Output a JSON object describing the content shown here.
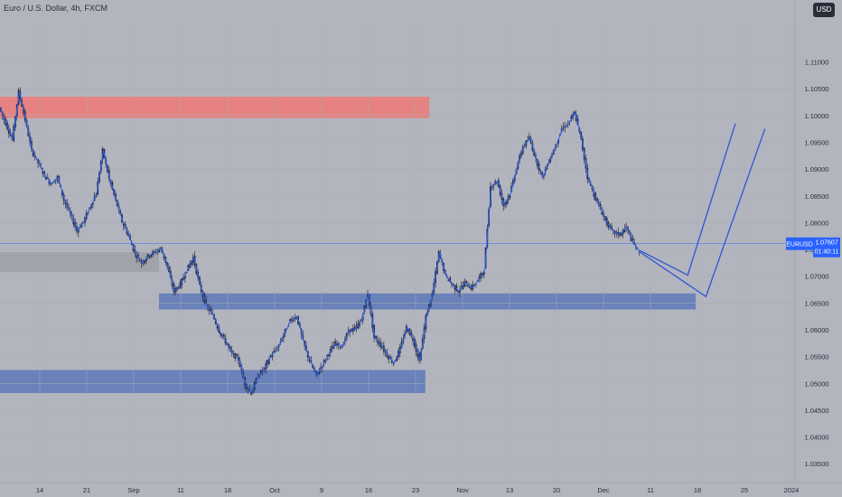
{
  "chart_title": "Euro / U.S. Dollar, 4h, FXCM",
  "currency": "USD",
  "price_tag": {
    "symbol": "EURUSD",
    "price": "1.07607",
    "countdown": "01:40:11",
    "value": 1.07607
  },
  "colors": {
    "background": "#b2b5be",
    "candle": "#2a2e39",
    "price_line": "#2962ff",
    "projection": "#3056d3",
    "supply_zone": "#ef7a78",
    "demand_zone": "#5d78b8",
    "neutral_zone": "#9ea0a8"
  },
  "chart_data": {
    "type": "line",
    "title": "Euro / U.S. Dollar, 4h, FXCM",
    "y_ticks": [
      "1.11000",
      "1.10500",
      "1.10000",
      "1.09500",
      "1.09000",
      "1.08500",
      "1.08000",
      "1.07500",
      "1.07000",
      "1.06500",
      "1.06000",
      "1.05500",
      "1.05000",
      "1.04500",
      "1.04000",
      "1.03500"
    ],
    "x_ticks": [
      "14",
      "21",
      "Sep",
      "11",
      "18",
      "Oct",
      "9",
      "16",
      "23",
      "Nov",
      "13",
      "20",
      "Dec",
      "11",
      "18",
      "25",
      "2024"
    ],
    "ylim": [
      1.0315,
      1.1165
    ],
    "series": [
      {
        "values": [
          1.1015,
          1.0985,
          1.0955,
          1.1045,
          1.0992,
          1.0935,
          1.0912,
          1.0888,
          1.0872,
          1.0885,
          1.0842,
          1.0815,
          1.0785,
          1.0802,
          1.0828,
          1.0855,
          1.0935,
          1.0882,
          1.0842,
          1.0802,
          1.0775,
          1.0742,
          1.0725,
          1.0738,
          1.0745,
          1.0752,
          1.0718,
          1.0672,
          1.0685,
          1.0712,
          1.0735,
          1.0682,
          1.0645,
          1.0628,
          1.0598,
          1.0578,
          1.0555,
          1.0545,
          1.0498,
          1.0482,
          1.0515,
          1.0528,
          1.0552,
          1.0565,
          1.0592,
          1.0618,
          1.0625,
          1.0578,
          1.0542,
          1.0515,
          1.0535,
          1.0558,
          1.0575,
          1.0568,
          1.0598,
          1.0602,
          1.0618,
          1.0668,
          1.0585,
          1.0572,
          1.0552,
          1.0538,
          1.0565,
          1.0605,
          1.0582,
          1.0542,
          1.0625,
          1.0668,
          1.0745,
          1.0702,
          1.0685,
          1.0672,
          1.0688,
          1.0678,
          1.0692,
          1.0712,
          1.0868,
          1.0878,
          1.0832,
          1.0855,
          1.0902,
          1.0942,
          1.0958,
          1.0918,
          1.0885,
          1.0915,
          1.0942,
          1.0975,
          1.0985,
          1.1005,
          1.0955,
          1.0885,
          1.0852,
          1.0825,
          1.0798,
          1.0782,
          1.0778,
          1.0792,
          1.0762,
          1.0745
        ]
      },
      {
        "name": "Projection",
        "values": [
          1.0748,
          1.0702,
          1.0985,
          1.0745,
          1.0662,
          1.0975
        ]
      }
    ],
    "zones": [
      {
        "label": "supply",
        "top": 1.1035,
        "bottom": 1.0995,
        "start": 0,
        "end": 0.54
      },
      {
        "label": "grey",
        "top": 1.0745,
        "bottom": 1.0708,
        "start": 0,
        "end": 0.2
      },
      {
        "label": "demand-upper",
        "top": 1.0668,
        "bottom": 1.0638,
        "start": 0.2,
        "end": 0.875
      },
      {
        "label": "demand-lower",
        "top": 1.0525,
        "bottom": 1.0482,
        "start": 0,
        "end": 0.535
      }
    ],
    "grid": true,
    "legend": "none"
  }
}
